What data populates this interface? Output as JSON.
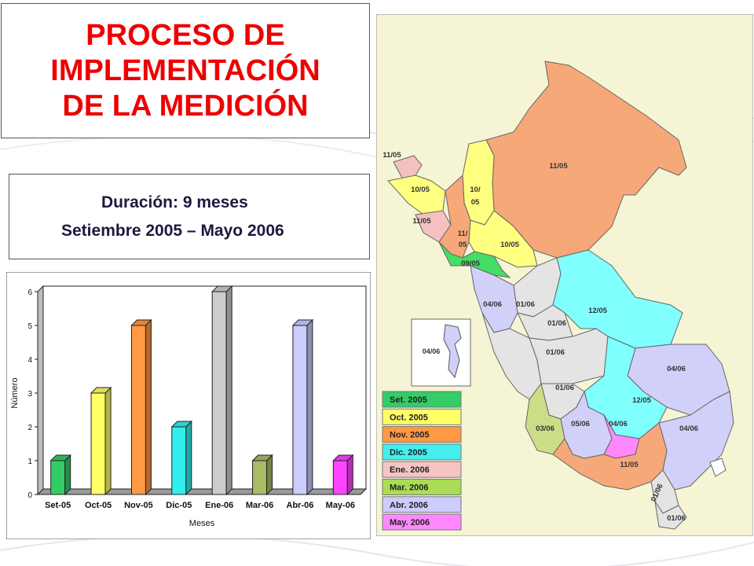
{
  "title": {
    "lines": [
      "PROCESO DE",
      "IMPLEMENTACIÓN",
      "DE LA MEDICIÓN"
    ]
  },
  "duration": {
    "line1": "Duración: 9 meses",
    "line2": "Setiembre 2005 – Mayo 2006"
  },
  "chart_data": {
    "type": "bar",
    "categories": [
      "Set-05",
      "Oct-05",
      "Nov-05",
      "Dic-05",
      "Ene-06",
      "Mar-06",
      "Abr-06",
      "May-06"
    ],
    "values": [
      1,
      3,
      5,
      2,
      6,
      1,
      5,
      1
    ],
    "colors": [
      "#33cc66",
      "#ffff66",
      "#ff9944",
      "#33eeee",
      "#cccccc",
      "#aabb66",
      "#ccccff",
      "#ff44ff"
    ],
    "xlabel": "Meses",
    "ylabel": "Número",
    "ylim": [
      0,
      6
    ],
    "yticks": [
      0,
      1,
      2,
      3,
      4,
      5,
      6
    ],
    "grid": false
  },
  "map": {
    "regions": [
      {
        "label": "11/05",
        "color": "#f6a878"
      },
      {
        "label": "11/05",
        "color": "#f4c0c0"
      },
      {
        "label": "10/05",
        "color": "#ffff80"
      },
      {
        "label": "10/",
        "color": "#ffff80"
      },
      {
        "label": "05",
        "color": "#ffff80"
      },
      {
        "label": "11/05",
        "color": "#f4c0c0"
      },
      {
        "label": "11/",
        "color": "#f6a878"
      },
      {
        "label": "05",
        "color": "#f6a878"
      },
      {
        "label": "10/05",
        "color": "#ffff80"
      },
      {
        "label": "09/05",
        "color": "#44dd66"
      },
      {
        "label": "04/06",
        "color": "#d0d0f8"
      },
      {
        "label": "01/06",
        "color": "#e4e4e4"
      },
      {
        "label": "12/05",
        "color": "#80ffff"
      },
      {
        "label": "01/06",
        "color": "#e4e4e4"
      },
      {
        "label": "01/06",
        "color": "#e4e4e4"
      },
      {
        "label": "04/06",
        "color": "#d0d0f8"
      },
      {
        "label": "01/06",
        "color": "#e4e4e4"
      },
      {
        "label": "12/05",
        "color": "#80ffff"
      },
      {
        "label": "03/06",
        "color": "#ccdd88"
      },
      {
        "label": "05/06",
        "color": "#ff88ff"
      },
      {
        "label": "04/06",
        "color": "#d0d0f8"
      },
      {
        "label": "04/06",
        "color": "#d0d0f8"
      },
      {
        "label": "11/05",
        "color": "#f6a878"
      },
      {
        "label": "01/06",
        "color": "#e4e4e4"
      },
      {
        "label": "01/06",
        "color": "#e4e4e4"
      }
    ],
    "inset_label": "04/06"
  },
  "legend": {
    "items": [
      {
        "label": "Set. 2005",
        "color": "#33cc66"
      },
      {
        "label": "Oct. 2005",
        "color": "#ffff66"
      },
      {
        "label": "Nov. 2005",
        "color": "#ff9944"
      },
      {
        "label": "Dic. 2005",
        "color": "#44eeee"
      },
      {
        "label": "Ene. 2006",
        "color": "#f6c4c4"
      },
      {
        "label": "Mar. 2006",
        "color": "#aadd55"
      },
      {
        "label": "Abr. 2006",
        "color": "#ccccff"
      },
      {
        "label": "May. 2006",
        "color": "#ff88ff"
      }
    ]
  }
}
